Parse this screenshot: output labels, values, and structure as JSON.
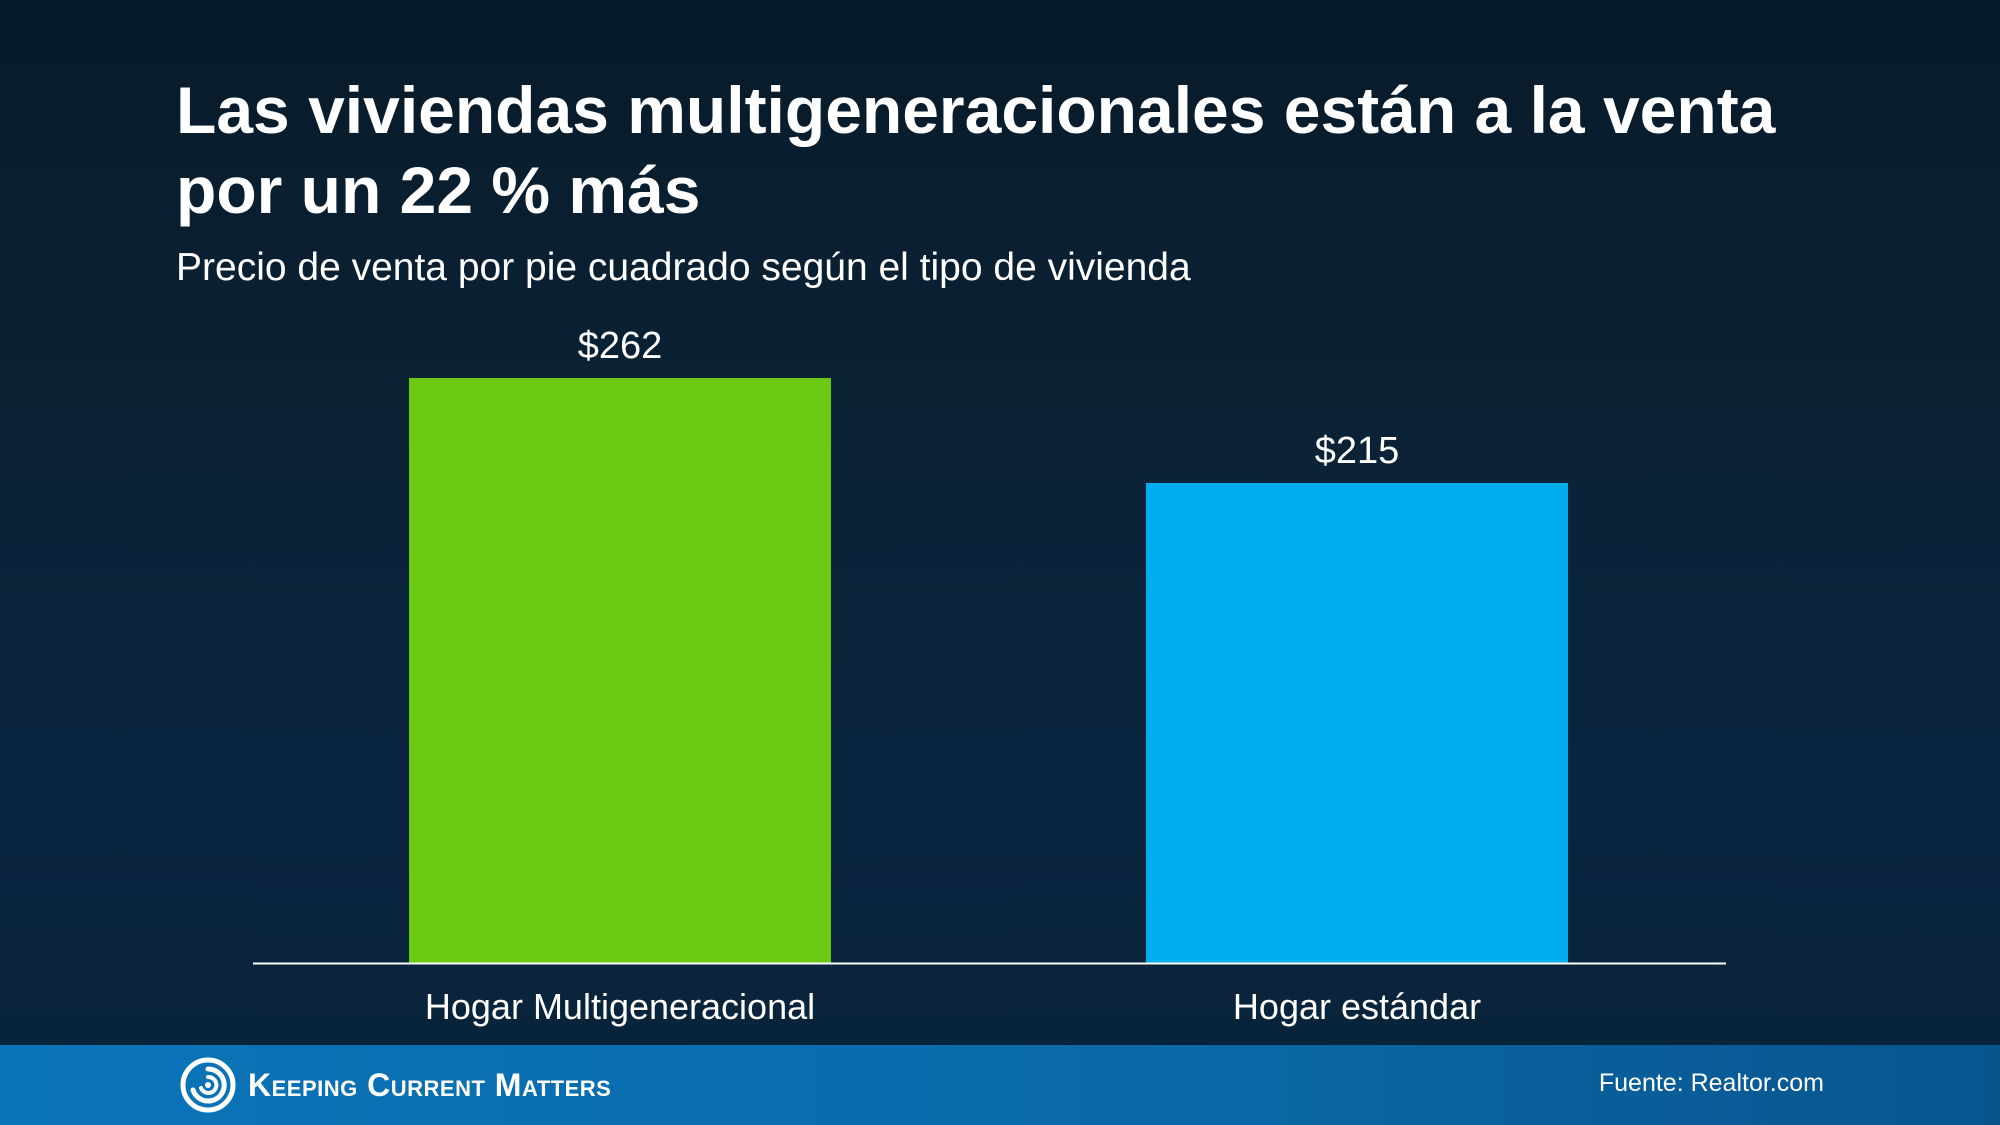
{
  "title": "Las viviendas multigeneracionales están a la venta por un 22 % más",
  "subtitle": "Precio de venta por pie cuadrado según el tipo de vivienda",
  "chart_data": {
    "type": "bar",
    "categories": [
      "Hogar Multigeneracional",
      "Hogar estándar"
    ],
    "values": [
      262,
      215
    ],
    "data_labels": [
      "$262",
      "$215"
    ],
    "colors": [
      "#6cc911",
      "#00aeef"
    ],
    "ylim": [
      0,
      262
    ],
    "grid": false,
    "legend": "none"
  },
  "footer": {
    "brand": "Keeping Current Matters",
    "brand_logo_icon": "swirl-logo-icon",
    "source": "Fuente: Realtor.com",
    "color": "#0a6aa9"
  }
}
